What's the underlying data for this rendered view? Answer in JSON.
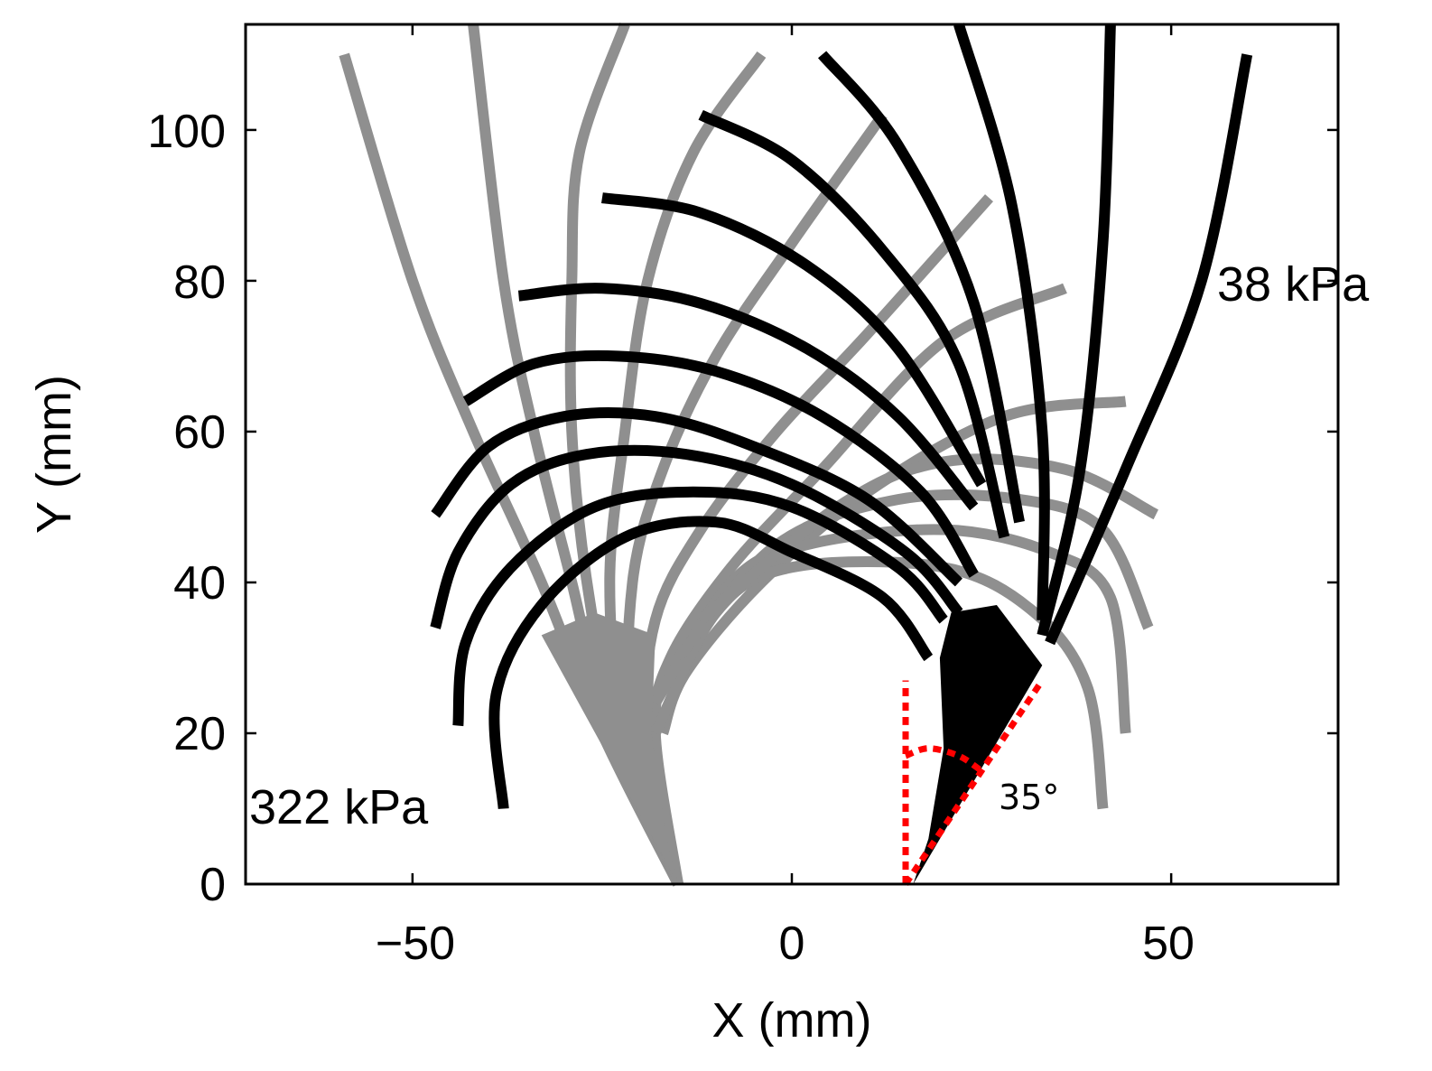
{
  "chart_data": {
    "type": "line",
    "title": "",
    "xlabel": "X (mm)",
    "ylabel": "Y (mm)",
    "xlim": [
      -72,
      72
    ],
    "ylim": [
      0,
      114
    ],
    "xticks": [
      -50,
      0,
      50
    ],
    "yticks": [
      0,
      20,
      40,
      60,
      80,
      100
    ],
    "xtick_labels": [
      "−50",
      "0",
      "50"
    ],
    "ytick_labels": [
      "0",
      "20",
      "40",
      "60",
      "80",
      "100"
    ],
    "grid": false,
    "colors": {
      "gray": "#8f8f8f",
      "black": "#000000",
      "red": "#ff0000"
    },
    "annotations": {
      "high_pressure": "322 kPa",
      "low_pressure": "38 kPa",
      "angle": "35°"
    },
    "series": [
      {
        "name": "gray-fan-1",
        "color": "gray",
        "points": [
          [
            -15,
            0
          ],
          [
            -25,
            20
          ],
          [
            -33,
            40
          ],
          [
            -42,
            60
          ],
          [
            -50,
            80
          ],
          [
            -59,
            110
          ]
        ]
      },
      {
        "name": "gray-fan-2",
        "color": "gray",
        "points": [
          [
            -15,
            0
          ],
          [
            -24,
            20
          ],
          [
            -29,
            40
          ],
          [
            -34,
            60
          ],
          [
            -38,
            80
          ],
          [
            -42,
            114
          ]
        ]
      },
      {
        "name": "gray-fan-3",
        "color": "gray",
        "points": [
          [
            -15,
            0
          ],
          [
            -23,
            20
          ],
          [
            -27,
            40
          ],
          [
            -29,
            60
          ],
          [
            -29,
            80
          ],
          [
            -28,
            97
          ],
          [
            -22,
            114
          ]
        ]
      },
      {
        "name": "gray-fan-4",
        "color": "gray",
        "points": [
          [
            -15,
            0
          ],
          [
            -22,
            20
          ],
          [
            -24,
            40
          ],
          [
            -22,
            60
          ],
          [
            -19,
            80
          ],
          [
            -13,
            97
          ],
          [
            -4,
            110
          ]
        ]
      },
      {
        "name": "gray-fan-5",
        "color": "gray",
        "points": [
          [
            -15,
            0
          ],
          [
            -21,
            20
          ],
          [
            -21,
            40
          ],
          [
            -17,
            55
          ],
          [
            -10,
            70
          ],
          [
            0,
            85
          ],
          [
            12,
            102
          ]
        ]
      },
      {
        "name": "gray-fan-6",
        "color": "gray",
        "points": [
          [
            -15,
            0
          ],
          [
            -19,
            20
          ],
          [
            -18,
            35
          ],
          [
            -12,
            47
          ],
          [
            -2,
            60
          ],
          [
            10,
            73
          ],
          [
            26,
            91
          ]
        ]
      },
      {
        "name": "gray-fan-7",
        "color": "gray",
        "points": [
          [
            -15,
            0
          ],
          [
            -18,
            20
          ],
          [
            -16,
            30
          ],
          [
            -8,
            42
          ],
          [
            4,
            55
          ],
          [
            20,
            72
          ],
          [
            36,
            79
          ]
        ]
      },
      {
        "name": "gray-fan-8",
        "color": "gray",
        "points": [
          [
            -17,
            20
          ],
          [
            -14,
            28
          ],
          [
            -4,
            40
          ],
          [
            10,
            52
          ],
          [
            28,
            62
          ],
          [
            44,
            64
          ]
        ]
      },
      {
        "name": "gray-arc-1",
        "color": "gray",
        "points": [
          [
            -18,
            20
          ],
          [
            -10,
            36
          ],
          [
            0,
            42
          ],
          [
            20,
            42
          ],
          [
            32,
            36
          ],
          [
            39,
            26
          ],
          [
            41,
            10
          ]
        ]
      },
      {
        "name": "gray-arc-2",
        "color": "gray",
        "points": [
          [
            -18,
            24
          ],
          [
            -8,
            40
          ],
          [
            2,
            45
          ],
          [
            20,
            47
          ],
          [
            34,
            44
          ],
          [
            42,
            38
          ],
          [
            44,
            20
          ]
        ]
      },
      {
        "name": "gray-arc-3",
        "color": "gray",
        "points": [
          [
            -15,
            30
          ],
          [
            -2,
            45
          ],
          [
            14,
            51
          ],
          [
            30,
            51
          ],
          [
            41,
            47
          ],
          [
            47,
            34
          ]
        ]
      },
      {
        "name": "gray-arc-4",
        "color": "gray",
        "points": [
          [
            -12,
            35
          ],
          [
            6,
            50
          ],
          [
            20,
            56
          ],
          [
            36,
            55
          ],
          [
            48,
            49
          ]
        ]
      },
      {
        "name": "black-arc-1",
        "color": "black",
        "points": [
          [
            -38,
            10
          ],
          [
            -39,
            25
          ],
          [
            -33,
            37
          ],
          [
            -22,
            46
          ],
          [
            -10,
            48
          ],
          [
            0,
            44
          ],
          [
            12,
            38
          ],
          [
            18,
            30
          ]
        ]
      },
      {
        "name": "black-arc-2",
        "color": "black",
        "points": [
          [
            -44,
            21
          ],
          [
            -43,
            32
          ],
          [
            -37,
            42
          ],
          [
            -26,
            50
          ],
          [
            -13,
            52
          ],
          [
            0,
            50
          ],
          [
            14,
            42
          ],
          [
            20,
            35
          ]
        ]
      },
      {
        "name": "black-arc-3",
        "color": "black",
        "points": [
          [
            -47,
            34
          ],
          [
            -44,
            44
          ],
          [
            -37,
            53
          ],
          [
            -27,
            57
          ],
          [
            -14,
            57
          ],
          [
            0,
            53
          ],
          [
            15,
            44
          ],
          [
            22,
            36
          ]
        ]
      },
      {
        "name": "black-arc-4",
        "color": "black",
        "points": [
          [
            -47,
            49
          ],
          [
            -40,
            58
          ],
          [
            -30,
            62
          ],
          [
            -18,
            62
          ],
          [
            -5,
            58
          ],
          [
            10,
            51
          ],
          [
            22,
            40
          ]
        ]
      },
      {
        "name": "black-arc-5",
        "color": "black",
        "points": [
          [
            -43,
            64
          ],
          [
            -34,
            69
          ],
          [
            -23,
            70
          ],
          [
            -10,
            68
          ],
          [
            4,
            62
          ],
          [
            17,
            52
          ],
          [
            24,
            41
          ]
        ]
      },
      {
        "name": "black-arc-6",
        "color": "black",
        "points": [
          [
            -36,
            78
          ],
          [
            -25,
            79
          ],
          [
            -12,
            77
          ],
          [
            2,
            71
          ],
          [
            14,
            62
          ],
          [
            24,
            50
          ]
        ]
      },
      {
        "name": "black-arc-7",
        "color": "black",
        "points": [
          [
            -25,
            91
          ],
          [
            -12,
            89
          ],
          [
            2,
            82
          ],
          [
            14,
            71
          ],
          [
            25,
            53
          ]
        ]
      },
      {
        "name": "black-arc-8",
        "color": "black",
        "points": [
          [
            -12,
            102
          ],
          [
            0,
            96
          ],
          [
            12,
            84
          ],
          [
            22,
            69
          ],
          [
            28,
            46
          ]
        ]
      },
      {
        "name": "black-arc-9",
        "color": "black",
        "points": [
          [
            4,
            110
          ],
          [
            14,
            98
          ],
          [
            24,
            77
          ],
          [
            30,
            48
          ]
        ]
      },
      {
        "name": "black-fan-1",
        "color": "black",
        "points": [
          [
            22,
            114
          ],
          [
            29,
            90
          ],
          [
            33,
            60
          ],
          [
            33,
            35
          ]
        ]
      },
      {
        "name": "black-fan-2",
        "color": "black",
        "points": [
          [
            42,
            114
          ],
          [
            41,
            85
          ],
          [
            38,
            55
          ],
          [
            33,
            33
          ]
        ]
      },
      {
        "name": "black-fan-3",
        "color": "black",
        "points": [
          [
            60,
            110
          ],
          [
            54,
            80
          ],
          [
            44,
            55
          ],
          [
            34,
            32
          ]
        ]
      }
    ],
    "guides": [
      {
        "name": "vertical-ref",
        "points": [
          [
            15,
            0
          ],
          [
            15,
            27
          ]
        ]
      },
      {
        "name": "angle-line",
        "points": [
          [
            15,
            0
          ],
          [
            33,
            27
          ]
        ]
      },
      {
        "name": "angle-arc",
        "points": [
          [
            15,
            17
          ],
          [
            18,
            18
          ],
          [
            22,
            17
          ],
          [
            25,
            15
          ]
        ]
      }
    ]
  }
}
